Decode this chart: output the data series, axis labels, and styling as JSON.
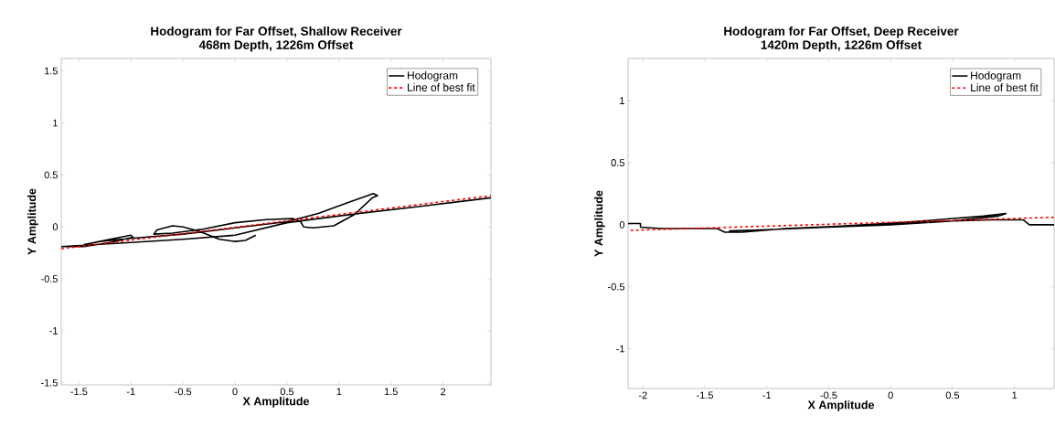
{
  "chart_data": [
    {
      "type": "line",
      "title": "Hodogram for Far Offset, Shallow Receiver",
      "subtitle": "468m Depth, 1226m Offset",
      "xlabel": "X Amplitude",
      "ylabel": "Y Amplitude",
      "xlim": [
        -1.67,
        2.46
      ],
      "ylim": [
        -1.52,
        1.62
      ],
      "xticks": [
        -1.5,
        -1,
        -0.5,
        0,
        0.5,
        1,
        1.5,
        2
      ],
      "yticks": [
        -1.5,
        -1,
        -0.5,
        0,
        0.5,
        1,
        1.5
      ],
      "grid": false,
      "legend": "top right",
      "marker": "none",
      "series": [
        {
          "name": "Hodogram",
          "color": "#000000",
          "line_style": "solid",
          "x": [
            0.2,
            0.1,
            0.0,
            -0.15,
            -0.35,
            -0.5,
            -0.6,
            -0.75,
            -0.78,
            -0.6,
            -0.3,
            0.0,
            0.3,
            0.55,
            0.63,
            0.66,
            0.75,
            0.95,
            1.15,
            1.32,
            1.37,
            1.33,
            1.1,
            0.8,
            0.5,
            0.0,
            -0.5,
            -1.0,
            -1.3,
            -1.45,
            -1.3,
            -1.0,
            -0.98,
            -1.2,
            -1.45,
            -1.67,
            -1.0,
            -0.5,
            0.0,
            0.5,
            0.8,
            1.2,
            1.8,
            2.46
          ],
          "values": [
            -0.08,
            -0.13,
            -0.14,
            -0.12,
            -0.04,
            0.0,
            0.01,
            -0.03,
            -0.07,
            -0.06,
            -0.02,
            0.04,
            0.07,
            0.08,
            0.05,
            0.0,
            -0.01,
            0.01,
            0.12,
            0.28,
            0.3,
            0.32,
            0.24,
            0.13,
            0.05,
            -0.01,
            -0.07,
            -0.11,
            -0.14,
            -0.17,
            -0.14,
            -0.08,
            -0.1,
            -0.15,
            -0.19,
            -0.19,
            -0.15,
            -0.12,
            -0.08,
            0.04,
            0.08,
            0.13,
            0.2,
            0.28
          ]
        },
        {
          "name": "Line of best fit",
          "color": "#ff0000",
          "line_style": "dashed",
          "x": [
            -1.67,
            2.46
          ],
          "values": [
            -0.21,
            0.3
          ]
        }
      ]
    },
    {
      "type": "line",
      "title": "Hodogram for Far Offset, Deep Receiver",
      "subtitle": "1420m Depth, 1226m Offset",
      "xlabel": "X Amplitude",
      "ylabel": "Y Amplitude",
      "xlim": [
        -2.12,
        1.32
      ],
      "ylim": [
        -1.32,
        1.34
      ],
      "xticks": [
        -2,
        -1.5,
        -1,
        -0.5,
        0,
        0.5,
        1
      ],
      "yticks": [
        -1,
        -0.5,
        0,
        0.5,
        1
      ],
      "grid": false,
      "legend": "top right",
      "marker": "none",
      "series": [
        {
          "name": "Hodogram",
          "color": "#000000",
          "line_style": "solid",
          "x": [
            -2.12,
            -2.02,
            -2.02,
            -1.85,
            -1.4,
            -1.34,
            -1.2,
            -0.85,
            -0.4,
            0.13,
            0.5,
            0.75,
            0.93,
            0.87,
            0.5,
            0.0,
            -0.5,
            -1.0,
            -1.3,
            -1.0,
            -0.5,
            0.0,
            0.5,
            0.8,
            1.07,
            1.12,
            1.32
          ],
          "values": [
            0.01,
            0.01,
            -0.02,
            -0.03,
            -0.03,
            -0.06,
            -0.06,
            -0.03,
            -0.01,
            0.02,
            0.05,
            0.07,
            0.09,
            0.07,
            0.03,
            0.0,
            -0.02,
            -0.04,
            -0.05,
            -0.04,
            -0.02,
            0.01,
            0.03,
            0.04,
            0.04,
            0.0,
            0.0
          ]
        },
        {
          "name": "Line of best fit",
          "color": "#ff0000",
          "line_style": "dashed",
          "x": [
            -2.1,
            1.32
          ],
          "values": [
            -0.045,
            0.06
          ]
        }
      ]
    }
  ]
}
